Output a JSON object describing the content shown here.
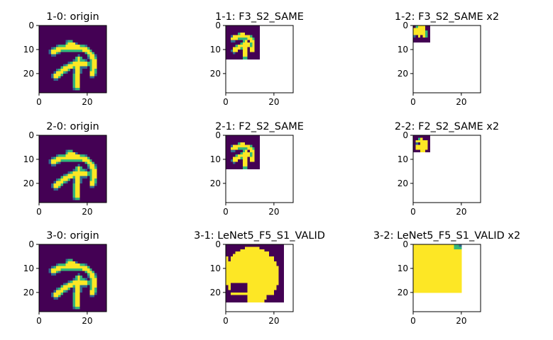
{
  "colors": {
    "background": "#440154",
    "stroke": "#fde725",
    "edge_light": "#35b779",
    "edge_dark": "#31688e",
    "axes": "#000000"
  },
  "chart_data": [
    {
      "id": "1-0",
      "type": "heatmap",
      "title": "1-0: origin",
      "shape": "stroke",
      "extent": [
        28,
        28
      ],
      "xlim": [
        0,
        28
      ],
      "ylim": [
        28,
        0
      ],
      "xticks": [
        0,
        20
      ],
      "yticks": [
        0,
        10,
        20
      ]
    },
    {
      "id": "1-1",
      "type": "heatmap",
      "title": "1-1: F3_S2_SAME",
      "shape": "stroke",
      "extent": [
        14,
        14
      ],
      "xlim": [
        0,
        28
      ],
      "ylim": [
        28,
        0
      ],
      "xticks": [
        0,
        20
      ],
      "yticks": [
        0,
        10,
        20
      ]
    },
    {
      "id": "1-2",
      "type": "heatmap",
      "title": "1-2: F3_S2_SAME x2",
      "shape": "blob_small",
      "extent": [
        7,
        7
      ],
      "xlim": [
        0,
        28
      ],
      "ylim": [
        28,
        0
      ],
      "xticks": [
        0,
        20
      ],
      "yticks": [
        0,
        10,
        20
      ]
    },
    {
      "id": "2-0",
      "type": "heatmap",
      "title": "2-0: origin",
      "shape": "stroke",
      "extent": [
        28,
        28
      ],
      "xlim": [
        0,
        28
      ],
      "ylim": [
        28,
        0
      ],
      "xticks": [
        0,
        20
      ],
      "yticks": [
        0,
        10,
        20
      ]
    },
    {
      "id": "2-1",
      "type": "heatmap",
      "title": "2-1: F2_S2_SAME",
      "shape": "stroke",
      "extent": [
        14,
        14
      ],
      "xlim": [
        0,
        28
      ],
      "ylim": [
        28,
        0
      ],
      "xticks": [
        0,
        20
      ],
      "yticks": [
        0,
        10,
        20
      ]
    },
    {
      "id": "2-2",
      "type": "heatmap",
      "title": "2-2: F2_S2_SAME x2",
      "shape": "stroke",
      "extent": [
        7,
        7
      ],
      "xlim": [
        0,
        28
      ],
      "ylim": [
        28,
        0
      ],
      "xticks": [
        0,
        20
      ],
      "yticks": [
        0,
        10,
        20
      ]
    },
    {
      "id": "3-0",
      "type": "heatmap",
      "title": "3-0: origin",
      "shape": "stroke",
      "extent": [
        28,
        28
      ],
      "xlim": [
        0,
        28
      ],
      "ylim": [
        28,
        0
      ],
      "xticks": [
        0,
        20
      ],
      "yticks": [
        0,
        10,
        20
      ]
    },
    {
      "id": "3-1",
      "type": "heatmap",
      "title": "3-1: LeNet5_F5_S1_VALID",
      "shape": "blob_large",
      "extent": [
        24,
        24
      ],
      "xlim": [
        0,
        28
      ],
      "ylim": [
        28,
        0
      ],
      "xticks": [
        0,
        20
      ],
      "yticks": [
        0,
        10,
        20
      ]
    },
    {
      "id": "3-2",
      "type": "heatmap",
      "title": "3-2: LeNet5_F5_S1_VALID x2",
      "shape": "filled",
      "extent": [
        20,
        20
      ],
      "xlim": [
        0,
        28
      ],
      "ylim": [
        28,
        0
      ],
      "xticks": [
        0,
        20
      ],
      "yticks": [
        0,
        10,
        20
      ]
    }
  ]
}
